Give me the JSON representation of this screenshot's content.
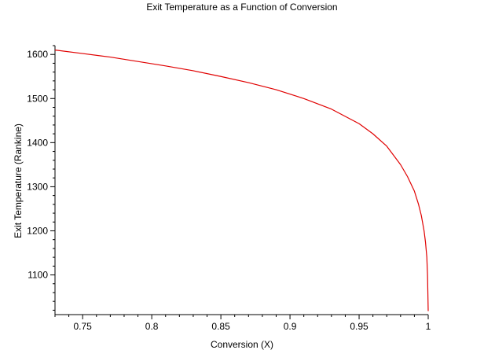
{
  "chart_data": {
    "type": "line",
    "title": "Exit Temperature as a Function of Conversion",
    "xlabel": "Conversion (X)",
    "ylabel": "Exit Temperature (Rankine)",
    "xlim": [
      0.73,
      1.0
    ],
    "ylim": [
      1010,
      1620
    ],
    "x_ticks": [
      0.75,
      0.8,
      0.85,
      0.9,
      0.95,
      1
    ],
    "x_tick_labels": [
      "0.75",
      "0.8",
      "0.85",
      "0.9",
      "0.95",
      "1"
    ],
    "y_ticks": [
      1100,
      1200,
      1300,
      1400,
      1500,
      1600
    ],
    "y_tick_labels": [
      "1100",
      "1200",
      "1300",
      "1400",
      "1500",
      "1600"
    ],
    "x_minor_step": 0.01,
    "y_minor_step": 20,
    "grid": false,
    "legend": false,
    "series": [
      {
        "color": "#e00000",
        "points": [
          [
            0.73,
            1610
          ],
          [
            0.75,
            1602
          ],
          [
            0.77,
            1594
          ],
          [
            0.79,
            1584
          ],
          [
            0.81,
            1574
          ],
          [
            0.83,
            1563
          ],
          [
            0.85,
            1550
          ],
          [
            0.87,
            1536
          ],
          [
            0.89,
            1520
          ],
          [
            0.91,
            1500
          ],
          [
            0.93,
            1476
          ],
          [
            0.95,
            1443
          ],
          [
            0.96,
            1420
          ],
          [
            0.97,
            1392
          ],
          [
            0.98,
            1350
          ],
          [
            0.985,
            1323
          ],
          [
            0.99,
            1290
          ],
          [
            0.993,
            1260
          ],
          [
            0.995,
            1235
          ],
          [
            0.997,
            1200
          ],
          [
            0.998,
            1175
          ],
          [
            0.999,
            1140
          ],
          [
            0.9995,
            1100
          ],
          [
            1.0,
            1018
          ]
        ]
      }
    ]
  }
}
